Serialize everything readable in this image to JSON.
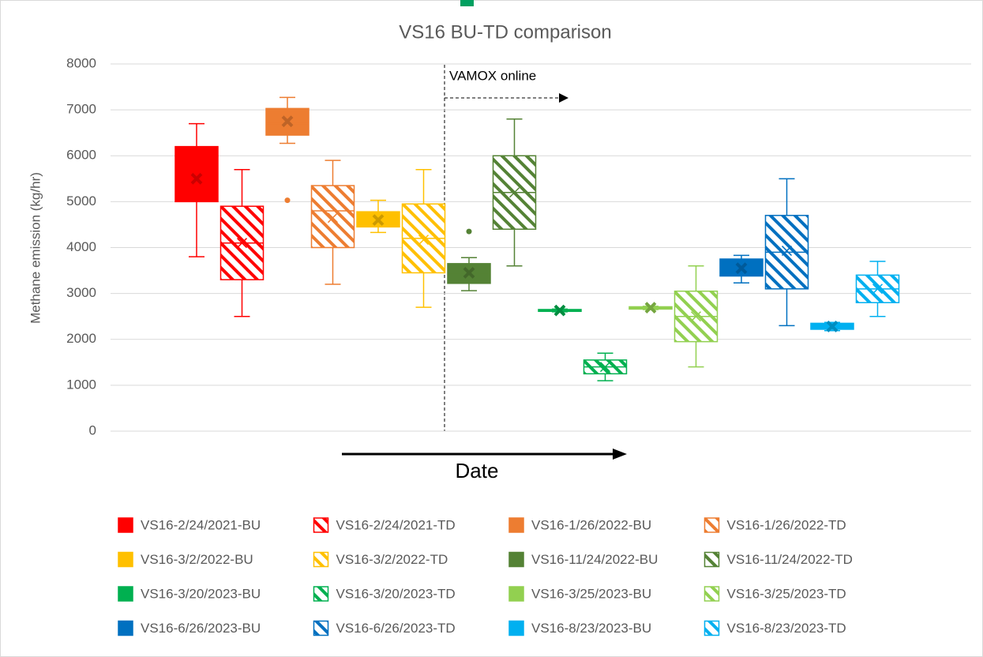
{
  "chart_data": {
    "type": "box",
    "title": "VS16 BU-TD comparison",
    "y_label": "Methane emission (kg/hr)",
    "x_label": "Date",
    "annotation": "VAMOX online",
    "ylim": [
      0,
      8000
    ],
    "yticks": [
      0,
      1000,
      2000,
      3000,
      4000,
      5000,
      6000,
      7000,
      8000
    ],
    "grid": true,
    "series": [
      {
        "name": "VS16-2/24/2021-BU",
        "color": "#ff0000",
        "hatched": false,
        "min": 3800,
        "q1": 5000,
        "median": 5600,
        "q3": 6200,
        "max": 6700,
        "mean": 5500,
        "outliers": []
      },
      {
        "name": "VS16-2/24/2021-TD",
        "color": "#ff0000",
        "hatched": true,
        "min": 2500,
        "q1": 3300,
        "median": 4100,
        "q3": 4900,
        "max": 5700,
        "mean": 4100,
        "outliers": []
      },
      {
        "name": "VS16-1/26/2022-BU",
        "color": "#ed7d31",
        "hatched": false,
        "min": 6270,
        "q1": 6450,
        "median": 6700,
        "q3": 7030,
        "max": 7270,
        "mean": 6750,
        "outliers": [
          5030
        ]
      },
      {
        "name": "VS16-1/26/2022-TD",
        "color": "#ed7d31",
        "hatched": true,
        "min": 3200,
        "q1": 4000,
        "median": 4800,
        "q3": 5350,
        "max": 5900,
        "mean": 4650,
        "outliers": []
      },
      {
        "name": "VS16-3/2/2022-BU",
        "color": "#ffc000",
        "hatched": false,
        "min": 4330,
        "q1": 4450,
        "median": 4600,
        "q3": 4780,
        "max": 5030,
        "mean": 4600,
        "outliers": []
      },
      {
        "name": "VS16-3/2/2022-TD",
        "color": "#ffc000",
        "hatched": true,
        "min": 2700,
        "q1": 3450,
        "median": 4200,
        "q3": 4950,
        "max": 5700,
        "mean": 4170,
        "outliers": []
      },
      {
        "name": "VS16-11/24/2022-BU",
        "color": "#548235",
        "hatched": false,
        "min": 3060,
        "q1": 3220,
        "median": 3450,
        "q3": 3650,
        "max": 3780,
        "mean": 3450,
        "outliers": [
          4350
        ]
      },
      {
        "name": "VS16-11/24/2022-TD",
        "color": "#548235",
        "hatched": true,
        "min": 3600,
        "q1": 4400,
        "median": 5200,
        "q3": 6000,
        "max": 6800,
        "mean": 5200,
        "outliers": []
      },
      {
        "name": "VS16-3/20/2023-BU",
        "color": "#00b050",
        "hatched": false,
        "min": 2600,
        "q1": 2610,
        "median": 2630,
        "q3": 2650,
        "max": 2660,
        "mean": 2630,
        "outliers": []
      },
      {
        "name": "VS16-3/20/2023-TD",
        "color": "#00b050",
        "hatched": true,
        "min": 1100,
        "q1": 1250,
        "median": 1400,
        "q3": 1550,
        "max": 1700,
        "mean": 1400,
        "outliers": []
      },
      {
        "name": "VS16-3/25/2023-BU",
        "color": "#92d050",
        "hatched": false,
        "min": 2650,
        "q1": 2660,
        "median": 2690,
        "q3": 2710,
        "max": 2720,
        "mean": 2690,
        "outliers": []
      },
      {
        "name": "VS16-3/25/2023-TD",
        "color": "#92d050",
        "hatched": true,
        "min": 1400,
        "q1": 1950,
        "median": 2500,
        "q3": 3050,
        "max": 3600,
        "mean": 2500,
        "outliers": []
      },
      {
        "name": "VS16-6/26/2023-BU",
        "color": "#0070c0",
        "hatched": false,
        "min": 3230,
        "q1": 3380,
        "median": 3550,
        "q3": 3750,
        "max": 3830,
        "mean": 3550,
        "outliers": []
      },
      {
        "name": "VS16-6/26/2023-TD",
        "color": "#0070c0",
        "hatched": true,
        "min": 2300,
        "q1": 3100,
        "median": 3900,
        "q3": 4700,
        "max": 5500,
        "mean": 3930,
        "outliers": []
      },
      {
        "name": "VS16-8/23/2023-BU",
        "color": "#00b0f0",
        "hatched": false,
        "min": 2190,
        "q1": 2220,
        "median": 2280,
        "q3": 2350,
        "max": 2370,
        "mean": 2280,
        "outliers": []
      },
      {
        "name": "VS16-8/23/2023-TD",
        "color": "#00b0f0",
        "hatched": true,
        "min": 2500,
        "q1": 2800,
        "median": 3100,
        "q3": 3400,
        "max": 3700,
        "mean": 3100,
        "outliers": []
      }
    ]
  }
}
